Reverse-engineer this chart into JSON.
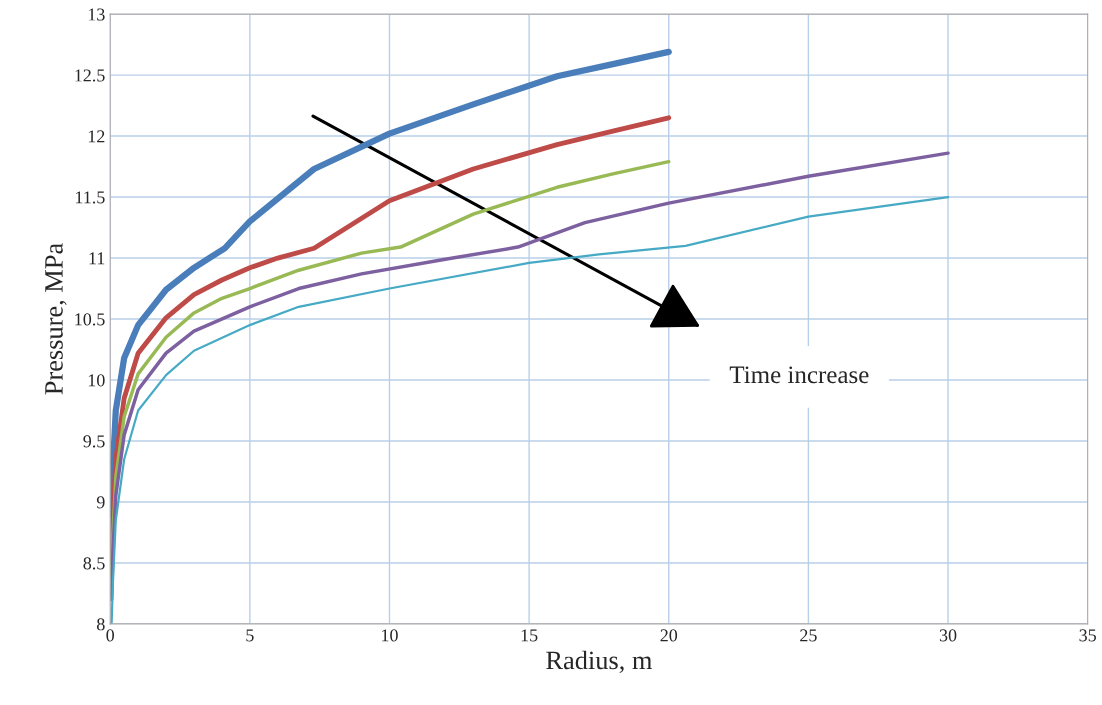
{
  "chart_data": {
    "type": "line",
    "xlabel": "Radius, m",
    "ylabel": "Pressure, MPa",
    "annotations": [
      "Time increase"
    ],
    "xlim": [
      0,
      35
    ],
    "xticks": [
      0,
      5,
      10,
      15,
      20,
      25,
      30,
      35
    ],
    "ylim": [
      8,
      13
    ],
    "yticks": [
      8,
      8.5,
      9,
      9.5,
      10,
      10.5,
      11,
      11.5,
      12,
      12.5,
      13
    ],
    "grid": true,
    "marker": "none",
    "line_style": "solid",
    "series": [
      {
        "color": "#4a7ebb",
        "x": [
          0.05,
          0.1,
          0.2,
          0.5,
          1,
          2,
          3,
          4.1,
          5,
          7.3,
          10,
          13,
          16,
          18,
          20
        ],
        "values": [
          8.9,
          9.3,
          9.75,
          10.18,
          10.45,
          10.74,
          10.92,
          11.08,
          11.3,
          11.73,
          12.02,
          12.26,
          12.49,
          12.59,
          12.69
        ]
      },
      {
        "color": "#be4b48",
        "x": [
          0.05,
          0.1,
          0.2,
          0.5,
          1,
          2,
          3,
          4,
          5,
          6,
          7.3,
          10,
          13,
          16,
          18,
          20
        ],
        "values": [
          8.5,
          8.9,
          9.35,
          9.85,
          10.22,
          10.51,
          10.7,
          10.82,
          10.92,
          11.0,
          11.08,
          11.47,
          11.73,
          11.93,
          12.04,
          12.15
        ]
      },
      {
        "color": "#98b954",
        "x": [
          0.05,
          0.1,
          0.2,
          0.5,
          1,
          2,
          3,
          4,
          5,
          6.75,
          9,
          10.4,
          13,
          16,
          18,
          20
        ],
        "values": [
          8.4,
          8.75,
          9.2,
          9.7,
          10.05,
          10.35,
          10.55,
          10.67,
          10.75,
          10.9,
          11.04,
          11.09,
          11.36,
          11.58,
          11.69,
          11.79
        ]
      },
      {
        "color": "#7d60a0",
        "x": [
          0.05,
          0.1,
          0.2,
          0.5,
          1,
          2,
          3,
          5,
          6.75,
          9,
          12,
          14.6,
          17,
          20,
          25,
          30
        ],
        "values": [
          8.2,
          8.6,
          9.05,
          9.55,
          9.92,
          10.22,
          10.4,
          10.6,
          10.75,
          10.87,
          10.99,
          11.09,
          11.29,
          11.45,
          11.67,
          11.86
        ]
      },
      {
        "color": "#46aac5",
        "x": [
          0.05,
          0.1,
          0.2,
          0.5,
          1,
          2,
          3,
          5,
          6.75,
          10,
          15,
          17.5,
          20.6,
          25,
          30
        ],
        "values": [
          8.0,
          8.35,
          8.85,
          9.35,
          9.75,
          10.04,
          10.24,
          10.45,
          10.6,
          10.75,
          10.96,
          11.03,
          11.1,
          11.34,
          11.5
        ]
      }
    ]
  }
}
